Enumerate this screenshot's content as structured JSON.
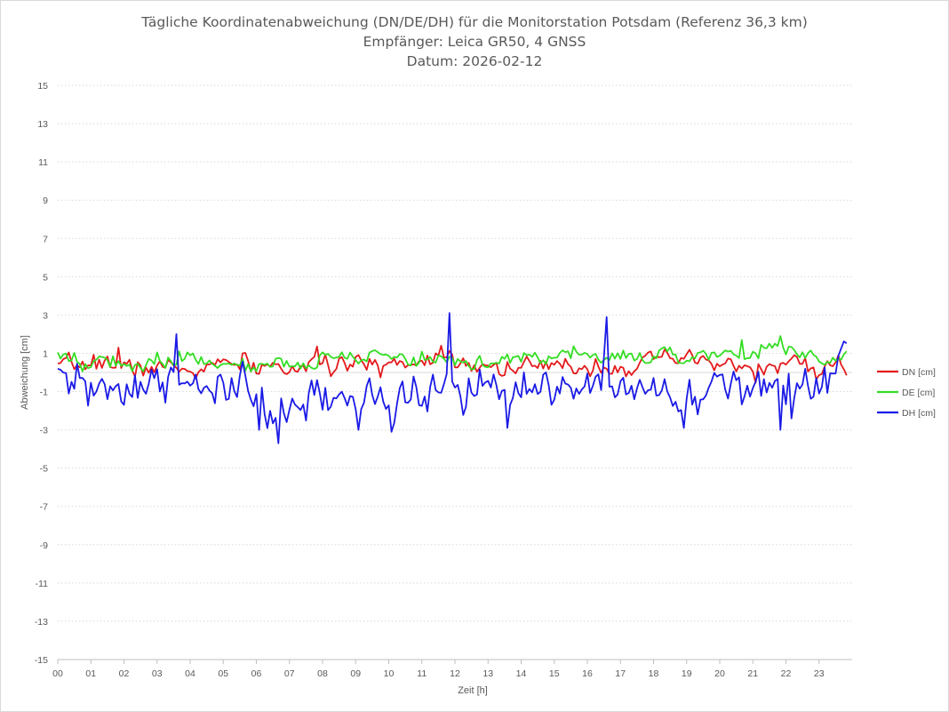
{
  "chart_data": {
    "type": "line",
    "title": [
      "Tägliche Koordinatenabweichung (DN/DE/DH) für die Monitorstation Potsdam (Referenz 36,3 km)",
      "Empfänger: Leica GR50, 4 GNSS",
      "Datum: 2026-02-12"
    ],
    "xlabel": "Zeit [h]",
    "ylabel": "Abweichung [cm]",
    "xlim": [
      0,
      24
    ],
    "ylim": [
      -15,
      15
    ],
    "yticks": [
      15,
      13,
      11,
      9,
      7,
      5,
      3,
      1,
      -1,
      -3,
      -5,
      -7,
      -9,
      -11,
      -13,
      -15
    ],
    "xticks": [
      {
        "value": 0,
        "label": "00"
      },
      {
        "value": 1,
        "label": "01"
      },
      {
        "value": 2,
        "label": "02"
      },
      {
        "value": 3,
        "label": "03"
      },
      {
        "value": 4,
        "label": "04"
      },
      {
        "value": 5,
        "label": "05"
      },
      {
        "value": 6,
        "label": "06"
      },
      {
        "value": 7,
        "label": "07"
      },
      {
        "value": 8,
        "label": "08"
      },
      {
        "value": 9,
        "label": "09"
      },
      {
        "value": 10,
        "label": "10"
      },
      {
        "value": 11,
        "label": "11"
      },
      {
        "value": 12,
        "label": "12"
      },
      {
        "value": 13,
        "label": "13"
      },
      {
        "value": 14,
        "label": "14"
      },
      {
        "value": 15,
        "label": "15"
      },
      {
        "value": 16,
        "label": "16"
      },
      {
        "value": 17,
        "label": "17"
      },
      {
        "value": 18,
        "label": "18"
      },
      {
        "value": 19,
        "label": "19"
      },
      {
        "value": 20,
        "label": "20"
      },
      {
        "value": 21,
        "label": "21"
      },
      {
        "value": 22,
        "label": "22"
      },
      {
        "value": 23,
        "label": "23"
      }
    ],
    "grid": true,
    "legend_position": "right",
    "sample_interval_min": 5,
    "series": [
      {
        "name": "DN [cm]",
        "color": "#e41a1c",
        "seed": 7,
        "noise": 0.38,
        "smooth": 0.35,
        "anchors": [
          [
            0,
            0.1
          ],
          [
            0.5,
            0.4
          ],
          [
            1.5,
            0.6
          ],
          [
            2,
            0.2
          ],
          [
            3,
            0.3
          ],
          [
            4,
            0.1
          ],
          [
            5,
            0.4
          ],
          [
            6,
            0.3
          ],
          [
            7,
            0.2
          ],
          [
            8,
            0.5
          ],
          [
            9,
            0.3
          ],
          [
            10,
            0.5
          ],
          [
            11,
            0.6
          ],
          [
            11.9,
            1.0
          ],
          [
            12.4,
            0.5
          ],
          [
            13,
            0.3
          ],
          [
            14,
            0.3
          ],
          [
            15,
            0.2
          ],
          [
            16,
            0.4
          ],
          [
            17,
            0.3
          ],
          [
            18,
            0.5
          ],
          [
            19,
            0.7
          ],
          [
            20,
            0.4
          ],
          [
            21,
            0.2
          ],
          [
            22,
            0.4
          ],
          [
            23,
            0.3
          ],
          [
            23.9,
            0.2
          ]
        ],
        "spikes": [
          [
            1.8,
            1.3
          ],
          [
            5.6,
            1.0
          ],
          [
            11.6,
            1.4
          ],
          [
            18.3,
            1.2
          ],
          [
            23.6,
            0.9
          ]
        ]
      },
      {
        "name": "DE [cm]",
        "color": "#33dd22",
        "seed": 19,
        "noise": 0.32,
        "smooth": 0.35,
        "anchors": [
          [
            0,
            0.7
          ],
          [
            1,
            0.6
          ],
          [
            2,
            0.5
          ],
          [
            3,
            0.5
          ],
          [
            4,
            0.8
          ],
          [
            5,
            0.6
          ],
          [
            6,
            0.3
          ],
          [
            7,
            0.5
          ],
          [
            8,
            0.6
          ],
          [
            9,
            0.6
          ],
          [
            10,
            0.8
          ],
          [
            11,
            0.7
          ],
          [
            12,
            0.5
          ],
          [
            13,
            0.6
          ],
          [
            14,
            0.8
          ],
          [
            15,
            0.8
          ],
          [
            16,
            0.9
          ],
          [
            17,
            0.7
          ],
          [
            18,
            0.8
          ],
          [
            19,
            0.8
          ],
          [
            20,
            0.9
          ],
          [
            21,
            1.1
          ],
          [
            21.8,
            1.2
          ],
          [
            22.5,
            0.9
          ],
          [
            23.5,
            0.7
          ],
          [
            23.9,
            1.2
          ]
        ],
        "spikes": [
          [
            3.7,
            1.1
          ],
          [
            20.7,
            1.7
          ],
          [
            21.8,
            1.9
          ],
          [
            23.9,
            1.3
          ]
        ]
      },
      {
        "name": "DH [cm]",
        "color": "#1a1ae6",
        "seed": 31,
        "noise": 0.75,
        "smooth": 0.25,
        "anchors": [
          [
            0,
            -0.6
          ],
          [
            1,
            -0.8
          ],
          [
            2,
            -0.9
          ],
          [
            3,
            -0.8
          ],
          [
            4,
            -0.3
          ],
          [
            5,
            -0.9
          ],
          [
            6,
            -1.1
          ],
          [
            6.6,
            -3.0
          ],
          [
            7,
            -2.0
          ],
          [
            8,
            -1.2
          ],
          [
            9,
            -1.4
          ],
          [
            10,
            -1.3
          ],
          [
            11,
            -0.9
          ],
          [
            12,
            -0.6
          ],
          [
            13,
            -0.9
          ],
          [
            14,
            -1.0
          ],
          [
            15,
            -1.1
          ],
          [
            16,
            -0.9
          ],
          [
            17,
            -0.6
          ],
          [
            18,
            -1.1
          ],
          [
            19,
            -1.6
          ],
          [
            20,
            -0.4
          ],
          [
            21,
            -0.5
          ],
          [
            22,
            -1.0
          ],
          [
            23,
            -0.8
          ],
          [
            23.9,
            0.4
          ]
        ],
        "spikes": [
          [
            3.6,
            2.0
          ],
          [
            6.1,
            -3.0
          ],
          [
            6.7,
            -3.7
          ],
          [
            9.1,
            -3.0
          ],
          [
            10.1,
            -3.1
          ],
          [
            11.85,
            3.1
          ],
          [
            13.6,
            -2.9
          ],
          [
            16.6,
            2.9
          ],
          [
            18.9,
            -2.9
          ],
          [
            21.8,
            -3.0
          ],
          [
            22.2,
            -2.4
          ]
        ]
      }
    ]
  }
}
